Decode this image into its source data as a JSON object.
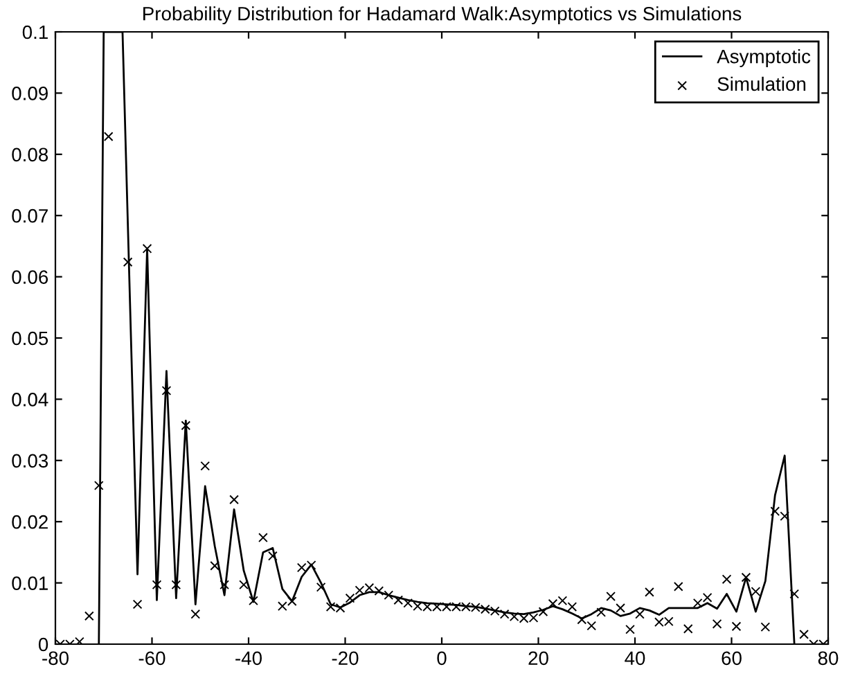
{
  "chart_data": {
    "type": "line",
    "title": "Probability Distribution for Hadamard Walk:Asymptotics vs Simulations",
    "xlim": [
      -80,
      80
    ],
    "xticks": [
      -80,
      -60,
      -40,
      -20,
      0,
      20,
      40,
      60,
      80
    ],
    "ylim": [
      0,
      0.1
    ],
    "yticks": [
      0,
      0.01,
      0.02,
      0.03,
      0.04,
      0.05,
      0.06,
      0.07,
      0.08,
      0.09,
      0.1
    ],
    "grid": false,
    "legend": "top right",
    "series": [
      {
        "name": "Asymptotic",
        "color": "#000000",
        "marker": "none",
        "line_style": "solid",
        "x": [
          -71,
          -70,
          -66.1,
          -63,
          -61,
          -59,
          -57,
          -55,
          -53,
          -51,
          -49,
          -47,
          -45,
          -43,
          -41,
          -39,
          -37,
          -35,
          -33,
          -31,
          -29,
          -27,
          -25,
          -23,
          -21,
          -19,
          -17,
          -15,
          -13,
          -11,
          -9,
          -7,
          -5,
          -3,
          -1,
          1,
          3,
          5,
          7,
          9,
          11,
          13,
          15,
          17,
          19,
          21,
          23,
          25,
          27,
          29,
          31,
          33,
          35,
          37,
          39,
          41,
          43,
          45,
          47,
          49,
          51,
          53,
          55,
          57,
          59,
          61,
          63,
          65,
          67,
          69,
          71,
          73
        ],
        "values": [
          0,
          0.1,
          0.1,
          0.0114,
          0.0646,
          0.0072,
          0.0446,
          0.0075,
          0.0365,
          0.0065,
          0.0258,
          0.016,
          0.008,
          0.022,
          0.012,
          0.0069,
          0.015,
          0.0157,
          0.009,
          0.007,
          0.011,
          0.013,
          0.01,
          0.0065,
          0.006,
          0.0068,
          0.008,
          0.0085,
          0.0085,
          0.008,
          0.0076,
          0.0072,
          0.0069,
          0.0067,
          0.0066,
          0.0065,
          0.0064,
          0.0062,
          0.0061,
          0.0058,
          0.0055,
          0.0052,
          0.005,
          0.0049,
          0.0052,
          0.0056,
          0.0062,
          0.0057,
          0.005,
          0.0042,
          0.0049,
          0.0059,
          0.0055,
          0.0046,
          0.005,
          0.0059,
          0.0055,
          0.0048,
          0.0059,
          0.0059,
          0.0059,
          0.0059,
          0.0067,
          0.0058,
          0.0082,
          0.0053,
          0.0109,
          0.0053,
          0.0103,
          0.0243,
          0.0308,
          0
        ]
      },
      {
        "name": "Simulation",
        "type": "scatter",
        "color": "#000000",
        "marker": "cross",
        "x": [
          -79,
          -77,
          -75,
          -73,
          -71,
          -69,
          -67,
          -65,
          -63,
          -61,
          -59,
          -57,
          -55,
          -53,
          -51,
          -49,
          -47,
          -45,
          -43,
          -41,
          -39,
          -37,
          -35,
          -33,
          -31,
          -29,
          -27,
          -25,
          -23,
          -21,
          -19,
          -17,
          -15,
          -13,
          -11,
          -9,
          -7,
          -5,
          -3,
          -1,
          1,
          3,
          5,
          7,
          9,
          11,
          13,
          15,
          17,
          19,
          21,
          23,
          25,
          27,
          29,
          31,
          33,
          35,
          37,
          39,
          41,
          43,
          45,
          47,
          49,
          51,
          53,
          55,
          57,
          59,
          61,
          63,
          65,
          67,
          69,
          71,
          73,
          75,
          77,
          79
        ],
        "values": [
          0,
          0,
          0.0004,
          0.0046,
          0.0259,
          0.0829,
          null,
          0.0624,
          0.0065,
          0.0646,
          0.0097,
          0.0414,
          0.0097,
          0.0357,
          0.0049,
          0.0291,
          0.0128,
          0.0097,
          0.0236,
          0.0097,
          0.0071,
          0.0174,
          0.0144,
          0.0062,
          0.007,
          0.0125,
          0.0129,
          0.0093,
          0.0061,
          0.0059,
          0.0075,
          0.0088,
          0.0092,
          0.0087,
          0.008,
          0.0072,
          0.0067,
          0.0062,
          0.0061,
          0.0061,
          0.0061,
          0.0061,
          0.0061,
          0.006,
          0.0057,
          0.0054,
          0.0049,
          0.0045,
          0.0042,
          0.0043,
          0.0053,
          0.0066,
          0.0071,
          0.0061,
          0.004,
          0.003,
          0.0052,
          0.0078,
          0.0059,
          0.0024,
          0.0049,
          0.0085,
          0.0036,
          0.0037,
          0.0094,
          0.0025,
          0.0067,
          0.0076,
          0.0033,
          0.0106,
          0.0029,
          0.0109,
          0.0086,
          0.0028,
          0.0217,
          0.0209,
          0.0082,
          0.0016,
          0,
          0
        ]
      }
    ]
  }
}
